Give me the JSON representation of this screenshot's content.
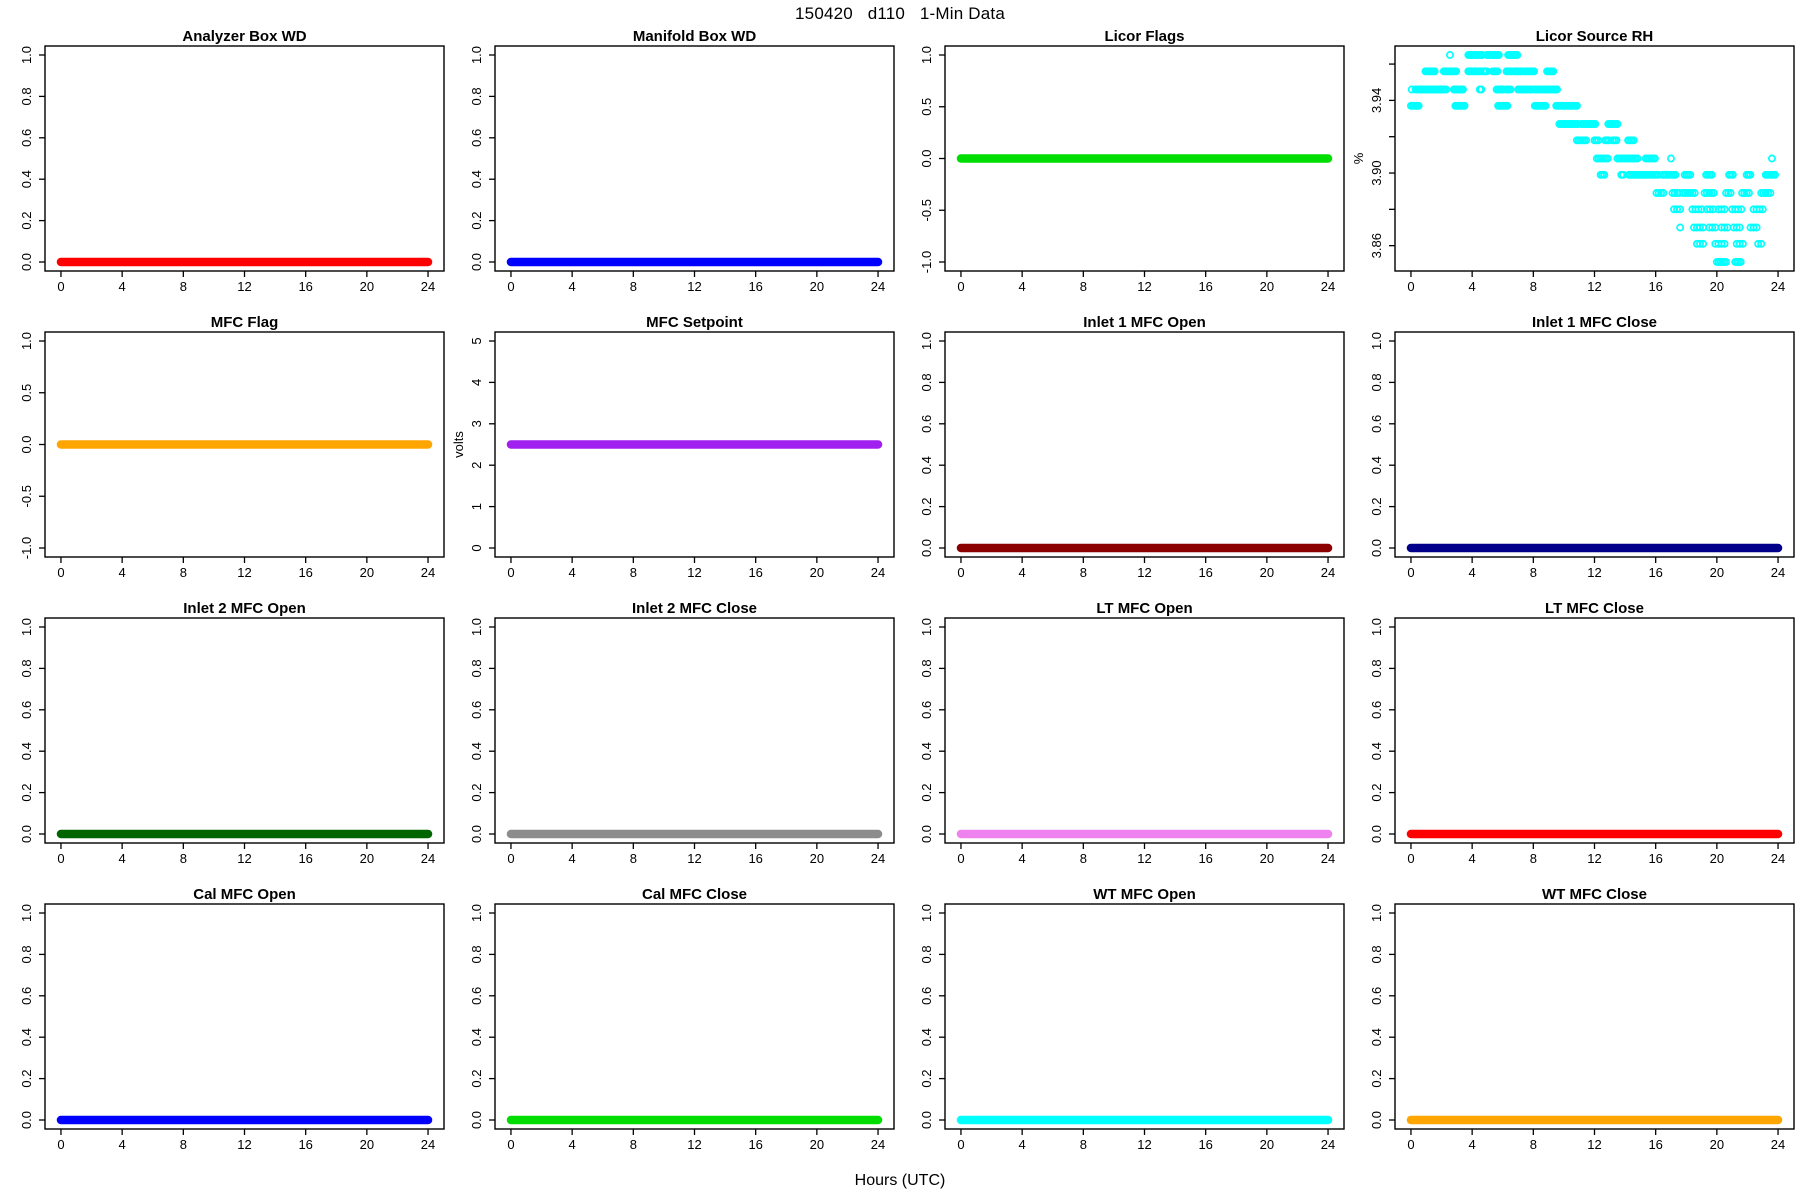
{
  "page_title": "150420   d110   1-Min Data",
  "xlabel": "Hours (UTC)",
  "chart_data": [
    {
      "type": "line",
      "title": "Analyzer Box WD",
      "color": "#ff0000",
      "constant_value": 0,
      "xlim": [
        0,
        24
      ],
      "xticks": [
        0,
        4,
        8,
        12,
        16,
        20,
        24
      ],
      "ylim": [
        0,
        1
      ],
      "ylabel": "",
      "yticks": [
        [
          0,
          "0.0"
        ],
        [
          0.2,
          "0.2"
        ],
        [
          0.4,
          "0.4"
        ],
        [
          0.6,
          "0.6"
        ],
        [
          0.8,
          "0.8"
        ],
        [
          1,
          "1.0"
        ]
      ]
    },
    {
      "type": "line",
      "title": "Manifold Box WD",
      "color": "#0000ff",
      "constant_value": 0,
      "xlim": [
        0,
        24
      ],
      "xticks": [
        0,
        4,
        8,
        12,
        16,
        20,
        24
      ],
      "ylim": [
        0,
        1
      ],
      "ylabel": "",
      "yticks": [
        [
          0,
          "0.0"
        ],
        [
          0.2,
          "0.2"
        ],
        [
          0.4,
          "0.4"
        ],
        [
          0.6,
          "0.6"
        ],
        [
          0.8,
          "0.8"
        ],
        [
          1,
          "1.0"
        ]
      ]
    },
    {
      "type": "line",
      "title": "Licor Flags",
      "color": "#00dd00",
      "constant_value": 0,
      "xlim": [
        0,
        24
      ],
      "xticks": [
        0,
        4,
        8,
        12,
        16,
        20,
        24
      ],
      "ylim": [
        -1,
        1
      ],
      "ylabel": "",
      "yticks": [
        [
          -1,
          "-1.0"
        ],
        [
          -0.5,
          "-0.5"
        ],
        [
          0,
          "0.0"
        ],
        [
          0.5,
          "0.5"
        ],
        [
          1,
          "1.0"
        ]
      ]
    },
    {
      "type": "scatter",
      "title": "Licor Source RH",
      "color": "#00ffff",
      "ylabel": "%",
      "xlim": [
        0,
        24
      ],
      "xticks": [
        0,
        4,
        8,
        12,
        16,
        20,
        24
      ],
      "ylim": [
        3.851,
        3.965
      ],
      "yticks": [
        [
          3.86,
          "3.86"
        ],
        [
          3.88,
          ""
        ],
        [
          3.9,
          "3.90"
        ],
        [
          3.92,
          ""
        ],
        [
          3.94,
          "3.94"
        ],
        [
          3.96,
          ""
        ]
      ],
      "levels": [
        {
          "v": 3.965,
          "step": 0.1,
          "singles": [
            2.55
          ],
          "runs": [
            [
              3.75,
              4.65
            ],
            [
              4.95,
              5.8
            ],
            [
              6.35,
              7.0
            ]
          ]
        },
        {
          "v": 3.956,
          "step": 0.1,
          "singles": [],
          "runs": [
            [
              0.95,
              1.6
            ],
            [
              2.15,
              3.0
            ],
            [
              3.75,
              4.55
            ],
            [
              4.75,
              5.0
            ],
            [
              5.35,
              5.65
            ],
            [
              6.25,
              6.6
            ],
            [
              6.75,
              7.3
            ],
            [
              7.45,
              8.1
            ],
            [
              8.9,
              9.35
            ]
          ]
        },
        {
          "v": 3.946,
          "step": 0.1,
          "singles": [
            0.05
          ],
          "runs": [
            [
              0.3,
              2.3
            ],
            [
              2.8,
              3.4
            ],
            [
              4.5,
              4.6
            ],
            [
              5.6,
              6.0
            ],
            [
              6.2,
              6.5
            ],
            [
              7.0,
              7.9
            ],
            [
              8.1,
              8.55
            ],
            [
              8.65,
              9.6
            ]
          ]
        },
        {
          "v": 3.937,
          "step": 0.1,
          "singles": [],
          "runs": [
            [
              0.0,
              0.5
            ],
            [
              2.9,
              3.5
            ],
            [
              5.7,
              6.3
            ],
            [
              8.1,
              8.8
            ],
            [
              9.5,
              10.1
            ],
            [
              10.25,
              10.9
            ]
          ]
        },
        {
          "v": 3.927,
          "step": 0.1,
          "singles": [],
          "runs": [
            [
              9.7,
              10.4
            ],
            [
              10.5,
              10.9
            ],
            [
              11.15,
              12.1
            ],
            [
              12.9,
              13.55
            ]
          ]
        },
        {
          "v": 3.918,
          "step": 0.12,
          "singles": [],
          "runs": [
            [
              10.85,
              11.55
            ],
            [
              12.0,
              12.3
            ],
            [
              12.7,
              13.05
            ],
            [
              13.2,
              13.55
            ],
            [
              14.2,
              14.6
            ]
          ]
        },
        {
          "v": 3.908,
          "step": 0.12,
          "singles": [
            17.0,
            23.6
          ],
          "runs": [
            [
              12.15,
              12.95
            ],
            [
              13.5,
              14.9
            ],
            [
              15.35,
              16.0
            ]
          ]
        },
        {
          "v": 3.899,
          "step": 0.12,
          "singles": [],
          "runs": [
            [
              12.4,
              12.7
            ],
            [
              13.75,
              13.95
            ],
            [
              14.25,
              16.2
            ],
            [
              16.45,
              17.4
            ],
            [
              17.9,
              18.3
            ],
            [
              19.3,
              19.7
            ],
            [
              20.8,
              21.05
            ],
            [
              21.95,
              22.25
            ],
            [
              23.2,
              23.85
            ]
          ]
        },
        {
          "v": 3.889,
          "step": 0.15,
          "singles": [],
          "runs": [
            [
              16.05,
              16.6
            ],
            [
              17.1,
              17.65
            ],
            [
              17.8,
              18.65
            ],
            [
              19.2,
              19.8
            ],
            [
              20.6,
              21.0
            ],
            [
              21.65,
              22.1
            ],
            [
              22.9,
              23.5
            ]
          ]
        },
        {
          "v": 3.88,
          "step": 0.2,
          "singles": [],
          "runs": [
            [
              17.2,
              17.6
            ],
            [
              18.4,
              19.0
            ],
            [
              19.35,
              19.75
            ],
            [
              20.1,
              20.65
            ],
            [
              21.0,
              21.6
            ],
            [
              22.4,
              23.0
            ]
          ]
        },
        {
          "v": 3.87,
          "step": 0.2,
          "singles": [
            17.6
          ],
          "runs": [
            [
              18.5,
              19.1
            ],
            [
              19.5,
              20.0
            ],
            [
              20.3,
              20.75
            ],
            [
              21.1,
              21.6
            ],
            [
              22.2,
              22.75
            ]
          ]
        },
        {
          "v": 3.861,
          "step": 0.2,
          "singles": [],
          "runs": [
            [
              18.7,
              19.2
            ],
            [
              19.9,
              20.5
            ],
            [
              21.3,
              21.85
            ],
            [
              22.7,
              23.0
            ]
          ]
        },
        {
          "v": 3.851,
          "step": 0.12,
          "singles": [],
          "runs": [
            [
              20.0,
              20.65
            ],
            [
              21.2,
              21.6
            ]
          ]
        }
      ]
    },
    {
      "type": "line",
      "title": "MFC Flag",
      "color": "#ffa500",
      "constant_value": 0,
      "xlim": [
        0,
        24
      ],
      "xticks": [
        0,
        4,
        8,
        12,
        16,
        20,
        24
      ],
      "ylim": [
        -1,
        1
      ],
      "ylabel": "",
      "yticks": [
        [
          -1,
          "-1.0"
        ],
        [
          -0.5,
          "-0.5"
        ],
        [
          0,
          "0.0"
        ],
        [
          0.5,
          "0.5"
        ],
        [
          1,
          "1.0"
        ]
      ]
    },
    {
      "type": "line",
      "title": "MFC Setpoint",
      "color": "#a020f0",
      "constant_value": 2.5,
      "xlim": [
        0,
        24
      ],
      "xticks": [
        0,
        4,
        8,
        12,
        16,
        20,
        24
      ],
      "ylim": [
        0,
        5
      ],
      "ylabel": "volts",
      "yticks": [
        [
          0,
          "0"
        ],
        [
          1,
          "1"
        ],
        [
          2,
          "2"
        ],
        [
          3,
          "3"
        ],
        [
          4,
          "4"
        ],
        [
          5,
          "5"
        ]
      ]
    },
    {
      "type": "line",
      "title": "Inlet 1 MFC Open",
      "color": "#8b0000",
      "constant_value": 0,
      "xlim": [
        0,
        24
      ],
      "xticks": [
        0,
        4,
        8,
        12,
        16,
        20,
        24
      ],
      "ylim": [
        0,
        1
      ],
      "ylabel": "",
      "yticks": [
        [
          0,
          "0.0"
        ],
        [
          0.2,
          "0.2"
        ],
        [
          0.4,
          "0.4"
        ],
        [
          0.6,
          "0.6"
        ],
        [
          0.8,
          "0.8"
        ],
        [
          1,
          "1.0"
        ]
      ]
    },
    {
      "type": "line",
      "title": "Inlet 1 MFC Close",
      "color": "#00008b",
      "constant_value": 0,
      "xlim": [
        0,
        24
      ],
      "xticks": [
        0,
        4,
        8,
        12,
        16,
        20,
        24
      ],
      "ylim": [
        0,
        1
      ],
      "ylabel": "",
      "yticks": [
        [
          0,
          "0.0"
        ],
        [
          0.2,
          "0.2"
        ],
        [
          0.4,
          "0.4"
        ],
        [
          0.6,
          "0.6"
        ],
        [
          0.8,
          "0.8"
        ],
        [
          1,
          "1.0"
        ]
      ]
    },
    {
      "type": "line",
      "title": "Inlet 2 MFC Open",
      "color": "#006400",
      "constant_value": 0,
      "xlim": [
        0,
        24
      ],
      "xticks": [
        0,
        4,
        8,
        12,
        16,
        20,
        24
      ],
      "ylim": [
        0,
        1
      ],
      "ylabel": "",
      "yticks": [
        [
          0,
          "0.0"
        ],
        [
          0.2,
          "0.2"
        ],
        [
          0.4,
          "0.4"
        ],
        [
          0.6,
          "0.6"
        ],
        [
          0.8,
          "0.8"
        ],
        [
          1,
          "1.0"
        ]
      ]
    },
    {
      "type": "line",
      "title": "Inlet 2 MFC Close",
      "color": "#8c8c8c",
      "constant_value": 0,
      "xlim": [
        0,
        24
      ],
      "xticks": [
        0,
        4,
        8,
        12,
        16,
        20,
        24
      ],
      "ylim": [
        0,
        1
      ],
      "ylabel": "",
      "yticks": [
        [
          0,
          "0.0"
        ],
        [
          0.2,
          "0.2"
        ],
        [
          0.4,
          "0.4"
        ],
        [
          0.6,
          "0.6"
        ],
        [
          0.8,
          "0.8"
        ],
        [
          1,
          "1.0"
        ]
      ]
    },
    {
      "type": "line",
      "title": "LT MFC Open",
      "color": "#ee82ee",
      "constant_value": 0,
      "xlim": [
        0,
        24
      ],
      "xticks": [
        0,
        4,
        8,
        12,
        16,
        20,
        24
      ],
      "ylim": [
        0,
        1
      ],
      "ylabel": "",
      "yticks": [
        [
          0,
          "0.0"
        ],
        [
          0.2,
          "0.2"
        ],
        [
          0.4,
          "0.4"
        ],
        [
          0.6,
          "0.6"
        ],
        [
          0.8,
          "0.8"
        ],
        [
          1,
          "1.0"
        ]
      ]
    },
    {
      "type": "line",
      "title": "LT MFC Close",
      "color": "#ff0000",
      "constant_value": 0,
      "xlim": [
        0,
        24
      ],
      "xticks": [
        0,
        4,
        8,
        12,
        16,
        20,
        24
      ],
      "ylim": [
        0,
        1
      ],
      "ylabel": "",
      "yticks": [
        [
          0,
          "0.0"
        ],
        [
          0.2,
          "0.2"
        ],
        [
          0.4,
          "0.4"
        ],
        [
          0.6,
          "0.6"
        ],
        [
          0.8,
          "0.8"
        ],
        [
          1,
          "1.0"
        ]
      ]
    },
    {
      "type": "line",
      "title": "Cal MFC Open",
      "color": "#0000ff",
      "constant_value": 0,
      "xlim": [
        0,
        24
      ],
      "xticks": [
        0,
        4,
        8,
        12,
        16,
        20,
        24
      ],
      "ylim": [
        0,
        1
      ],
      "ylabel": "",
      "yticks": [
        [
          0,
          "0.0"
        ],
        [
          0.2,
          "0.2"
        ],
        [
          0.4,
          "0.4"
        ],
        [
          0.6,
          "0.6"
        ],
        [
          0.8,
          "0.8"
        ],
        [
          1,
          "1.0"
        ]
      ]
    },
    {
      "type": "line",
      "title": "Cal MFC Close",
      "color": "#00dd00",
      "constant_value": 0,
      "xlim": [
        0,
        24
      ],
      "xticks": [
        0,
        4,
        8,
        12,
        16,
        20,
        24
      ],
      "ylim": [
        0,
        1
      ],
      "ylabel": "",
      "yticks": [
        [
          0,
          "0.0"
        ],
        [
          0.2,
          "0.2"
        ],
        [
          0.4,
          "0.4"
        ],
        [
          0.6,
          "0.6"
        ],
        [
          0.8,
          "0.8"
        ],
        [
          1,
          "1.0"
        ]
      ]
    },
    {
      "type": "line",
      "title": "WT MFC Open",
      "color": "#00ffff",
      "constant_value": 0,
      "xlim": [
        0,
        24
      ],
      "xticks": [
        0,
        4,
        8,
        12,
        16,
        20,
        24
      ],
      "ylim": [
        0,
        1
      ],
      "ylabel": "",
      "yticks": [
        [
          0,
          "0.0"
        ],
        [
          0.2,
          "0.2"
        ],
        [
          0.4,
          "0.4"
        ],
        [
          0.6,
          "0.6"
        ],
        [
          0.8,
          "0.8"
        ],
        [
          1,
          "1.0"
        ]
      ]
    },
    {
      "type": "line",
      "title": "WT MFC Close",
      "color": "#ffa500",
      "constant_value": 0,
      "xlim": [
        0,
        24
      ],
      "xticks": [
        0,
        4,
        8,
        12,
        16,
        20,
        24
      ],
      "ylim": [
        0,
        1
      ],
      "ylabel": "",
      "yticks": [
        [
          0,
          "0.0"
        ],
        [
          0.2,
          "0.2"
        ],
        [
          0.4,
          "0.4"
        ],
        [
          0.6,
          "0.6"
        ],
        [
          0.8,
          "0.8"
        ],
        [
          1,
          "1.0"
        ]
      ]
    }
  ]
}
